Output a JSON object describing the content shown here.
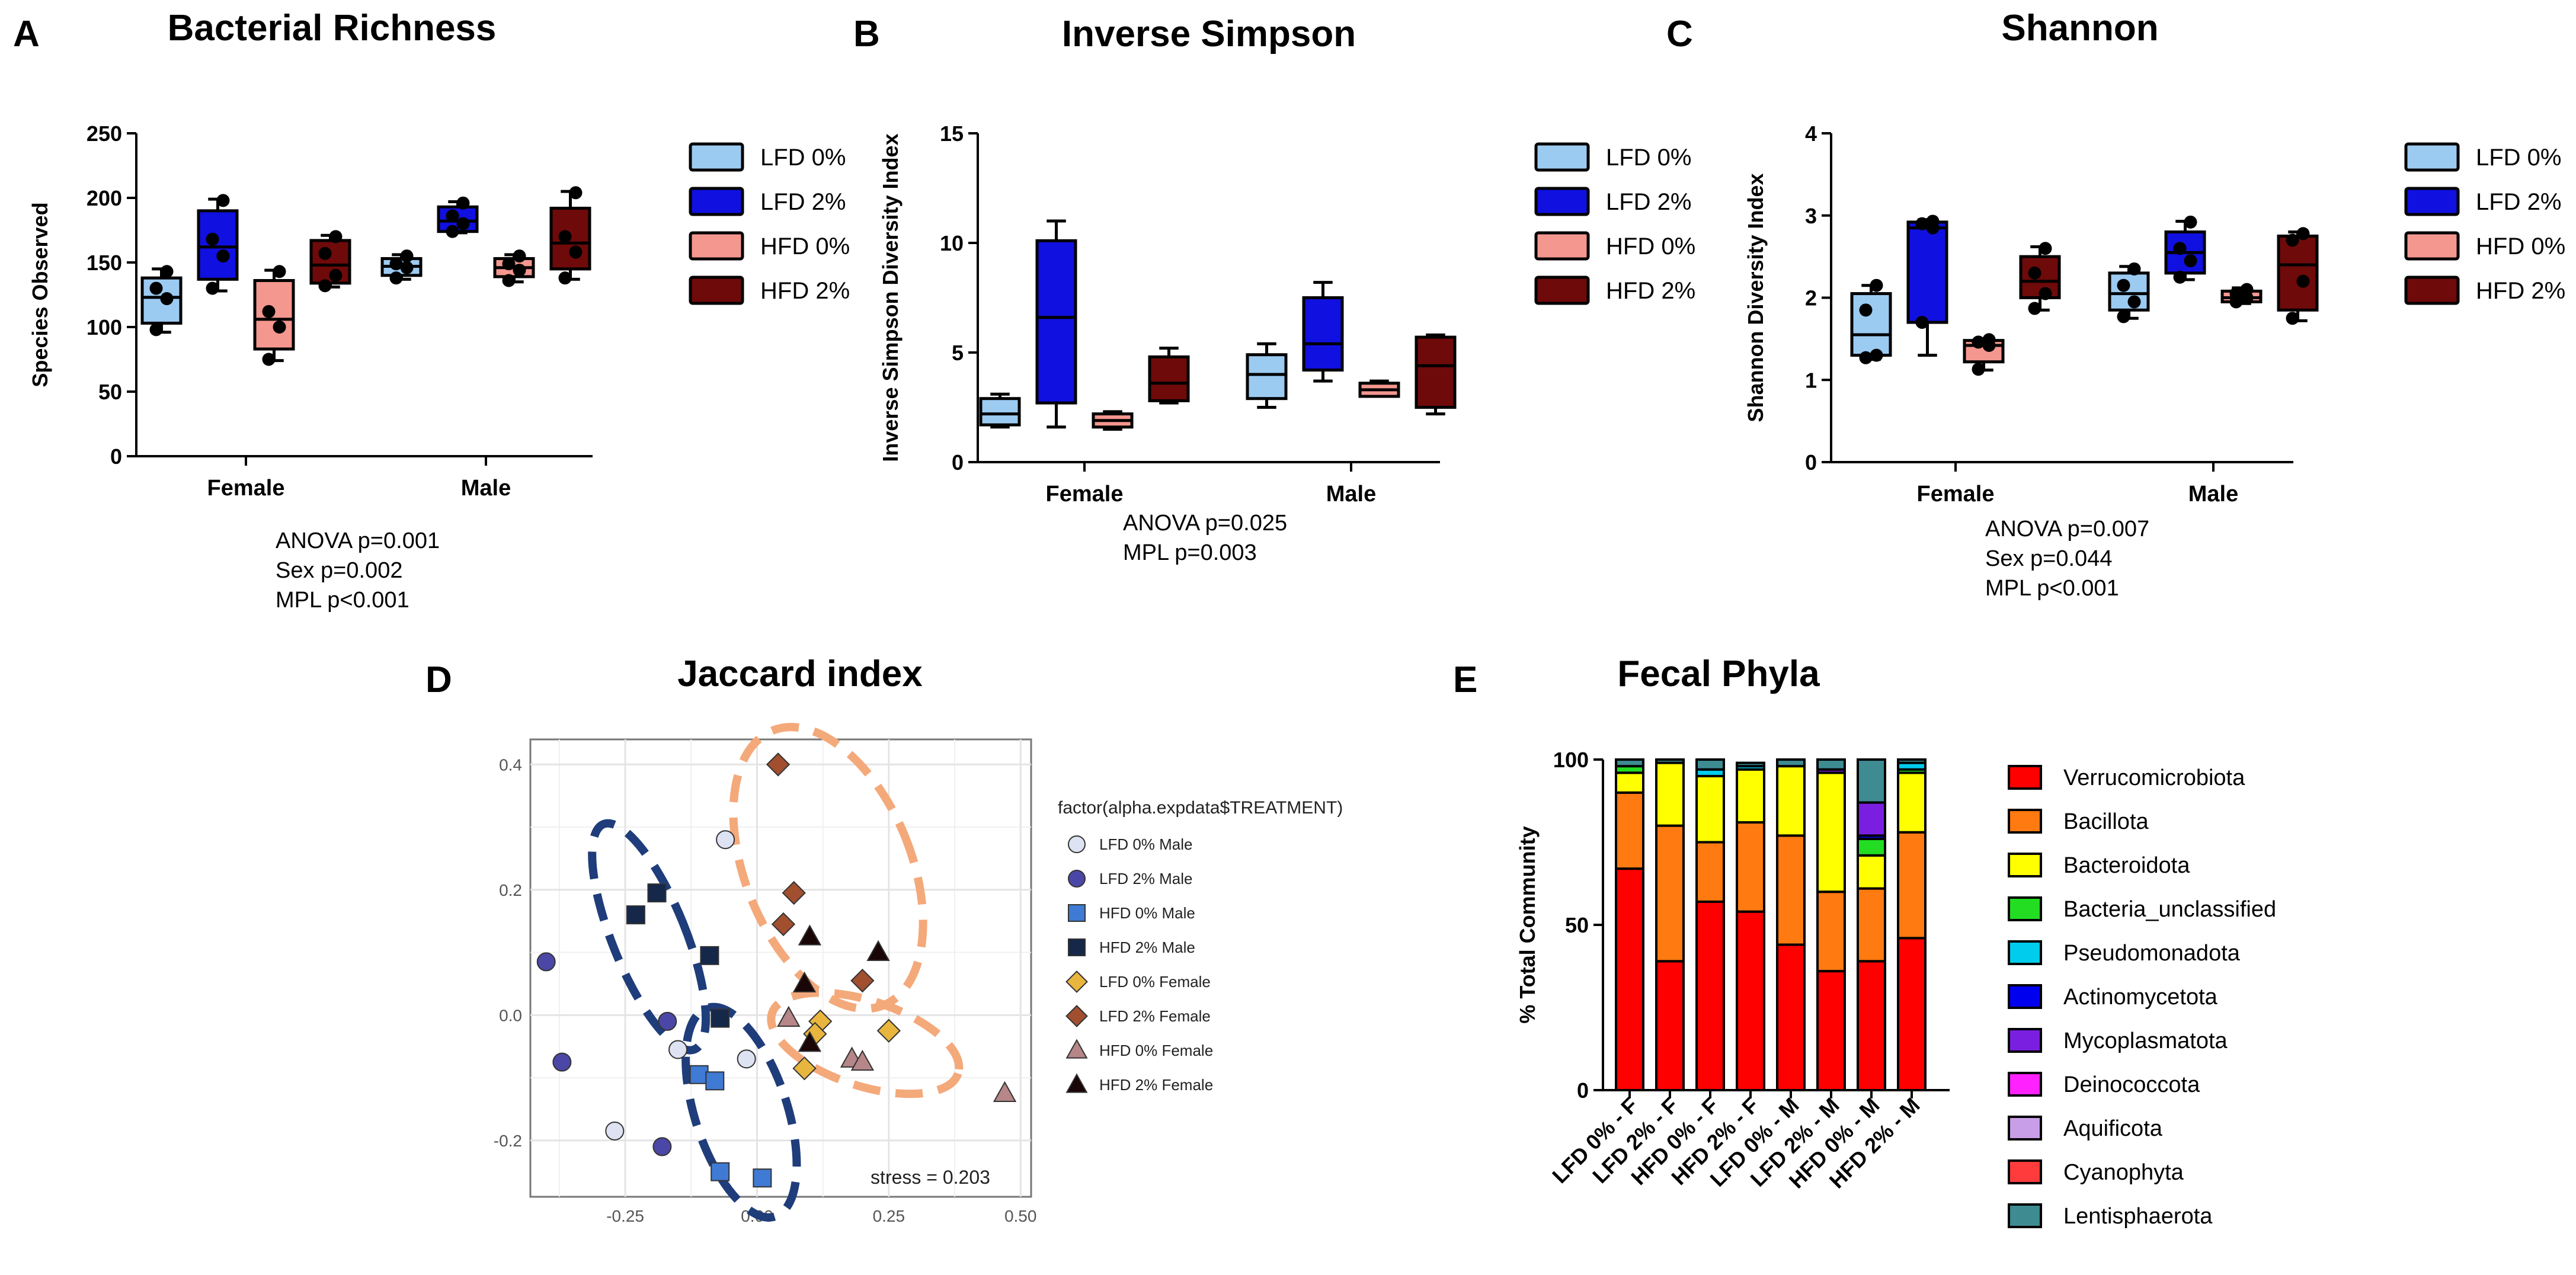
{
  "colors": {
    "lfd0": "#9ccbf2",
    "lfd2": "#1010e0",
    "hfd0": "#f4978f",
    "hfd2": "#6e0a0a",
    "nav": "#1f3d7a",
    "orange": "#f4a97a"
  },
  "panels": {
    "A": {
      "letter": "A",
      "title": "Bacterial Richness",
      "stats": [
        "ANOVA p=0.001",
        "Sex p=0.002",
        "MPL p<0.001"
      ]
    },
    "B": {
      "letter": "B",
      "title": "Inverse Simpson",
      "stats": [
        "ANOVA p=0.025",
        "MPL p=0.003"
      ]
    },
    "C": {
      "letter": "C",
      "title": "Shannon",
      "stats": [
        "ANOVA p=0.007",
        "Sex p=0.044",
        "MPL p<0.001"
      ]
    },
    "D": {
      "letter": "D",
      "title": "Jaccard index"
    },
    "E": {
      "letter": "E",
      "title": "Fecal Phyla"
    }
  },
  "chart_data": [
    {
      "id": "A",
      "type": "box",
      "title": "Bacterial Richness",
      "ylabel": "Species Observed",
      "ylim": [
        0,
        250
      ],
      "yticks": [
        0,
        50,
        100,
        150,
        200,
        250
      ],
      "categories": [
        "Female",
        "Male"
      ],
      "legend": [
        "LFD 0%",
        "LFD 2%",
        "HFD 0%",
        "HFD 2%"
      ],
      "boxes": [
        {
          "group": "Female",
          "series": "LFD 0%",
          "min": 96,
          "q1": 103,
          "median": 123,
          "q3": 138,
          "max": 145,
          "points": [
            98,
            122,
            130,
            143
          ]
        },
        {
          "group": "Female",
          "series": "LFD 2%",
          "min": 128,
          "q1": 137,
          "median": 162,
          "q3": 190,
          "max": 199,
          "points": [
            130,
            155,
            168,
            198
          ]
        },
        {
          "group": "Female",
          "series": "HFD 0%",
          "min": 74,
          "q1": 83,
          "median": 106,
          "q3": 136,
          "max": 144,
          "points": [
            75,
            100,
            112,
            143
          ]
        },
        {
          "group": "Female",
          "series": "HFD 2%",
          "min": 131,
          "q1": 134,
          "median": 148,
          "q3": 167,
          "max": 171,
          "points": [
            132,
            140,
            157,
            170
          ]
        },
        {
          "group": "Male",
          "series": "LFD 0%",
          "min": 137,
          "q1": 140,
          "median": 147,
          "q3": 153,
          "max": 156,
          "points": [
            138,
            146,
            149,
            155
          ]
        },
        {
          "group": "Male",
          "series": "LFD 2%",
          "min": 173,
          "q1": 174,
          "median": 182,
          "q3": 193,
          "max": 197,
          "points": [
            174,
            180,
            186,
            196
          ]
        },
        {
          "group": "Male",
          "series": "HFD 0%",
          "min": 135,
          "q1": 139,
          "median": 146,
          "q3": 153,
          "max": 156,
          "points": [
            136,
            144,
            149,
            155
          ]
        },
        {
          "group": "Male",
          "series": "HFD 2%",
          "min": 137,
          "q1": 145,
          "median": 165,
          "q3": 192,
          "max": 205,
          "points": [
            138,
            158,
            170,
            204
          ]
        }
      ]
    },
    {
      "id": "B",
      "type": "box",
      "title": "Inverse Simpson",
      "ylabel": "Inverse Simpson Diversity Index",
      "ylim": [
        0,
        15
      ],
      "yticks": [
        0,
        5,
        10,
        15
      ],
      "categories": [
        "Female",
        "Male"
      ],
      "legend": [
        "LFD 0%",
        "LFD 2%",
        "HFD 0%",
        "HFD 2%"
      ],
      "boxes": [
        {
          "group": "Female",
          "series": "LFD 0%",
          "min": 1.6,
          "q1": 1.7,
          "median": 2.2,
          "q3": 2.9,
          "max": 3.1,
          "points": []
        },
        {
          "group": "Female",
          "series": "LFD 2%",
          "min": 1.6,
          "q1": 2.7,
          "median": 6.6,
          "q3": 10.1,
          "max": 11.0,
          "points": []
        },
        {
          "group": "Female",
          "series": "HFD 0%",
          "min": 1.5,
          "q1": 1.6,
          "median": 1.9,
          "q3": 2.2,
          "max": 2.3,
          "points": []
        },
        {
          "group": "Female",
          "series": "HFD 2%",
          "min": 2.7,
          "q1": 2.8,
          "median": 3.6,
          "q3": 4.8,
          "max": 5.2,
          "points": []
        },
        {
          "group": "Male",
          "series": "LFD 0%",
          "min": 2.5,
          "q1": 2.9,
          "median": 4.0,
          "q3": 4.9,
          "max": 5.4,
          "points": []
        },
        {
          "group": "Male",
          "series": "LFD 2%",
          "min": 3.7,
          "q1": 4.2,
          "median": 5.4,
          "q3": 7.5,
          "max": 8.2,
          "points": []
        },
        {
          "group": "Male",
          "series": "HFD 0%",
          "min": 3.0,
          "q1": 3.0,
          "median": 3.3,
          "q3": 3.6,
          "max": 3.7,
          "points": []
        },
        {
          "group": "Male",
          "series": "HFD 2%",
          "min": 2.2,
          "q1": 2.5,
          "median": 4.4,
          "q3": 5.7,
          "max": 5.8,
          "points": []
        }
      ]
    },
    {
      "id": "C",
      "type": "box",
      "title": "Shannon",
      "ylabel": "Shannon Diversity Index",
      "ylim": [
        0,
        4
      ],
      "yticks": [
        0,
        1,
        2,
        3,
        4
      ],
      "categories": [
        "Female",
        "Male"
      ],
      "legend": [
        "LFD 0%",
        "LFD 2%",
        "HFD 0%",
        "HFD 2%"
      ],
      "boxes": [
        {
          "group": "Female",
          "series": "LFD 0%",
          "min": 1.25,
          "q1": 1.3,
          "median": 1.55,
          "q3": 2.05,
          "max": 2.15,
          "points": [
            1.27,
            1.3,
            1.85,
            2.15
          ]
        },
        {
          "group": "Female",
          "series": "LFD 2%",
          "min": 1.3,
          "q1": 1.7,
          "median": 2.85,
          "q3": 2.92,
          "max": 2.95,
          "points": [
            1.7,
            2.85,
            2.9,
            2.93
          ]
        },
        {
          "group": "Female",
          "series": "HFD 0%",
          "min": 1.12,
          "q1": 1.22,
          "median": 1.42,
          "q3": 1.48,
          "max": 1.5,
          "points": [
            1.13,
            1.42,
            1.46,
            1.49
          ]
        },
        {
          "group": "Female",
          "series": "HFD 2%",
          "min": 1.85,
          "q1": 2.0,
          "median": 2.2,
          "q3": 2.5,
          "max": 2.62,
          "points": [
            1.87,
            2.05,
            2.3,
            2.6
          ]
        },
        {
          "group": "Male",
          "series": "LFD 0%",
          "min": 1.75,
          "q1": 1.85,
          "median": 2.05,
          "q3": 2.3,
          "max": 2.38,
          "points": [
            1.77,
            1.95,
            2.15,
            2.35
          ]
        },
        {
          "group": "Male",
          "series": "LFD 2%",
          "min": 2.22,
          "q1": 2.3,
          "median": 2.55,
          "q3": 2.8,
          "max": 2.93,
          "points": [
            2.25,
            2.45,
            2.6,
            2.92
          ]
        },
        {
          "group": "Male",
          "series": "HFD 0%",
          "min": 1.93,
          "q1": 1.95,
          "median": 2.0,
          "q3": 2.08,
          "max": 2.12,
          "points": [
            1.95,
            2.0,
            2.05,
            2.1
          ]
        },
        {
          "group": "Male",
          "series": "HFD 2%",
          "min": 1.72,
          "q1": 1.85,
          "median": 2.4,
          "q3": 2.75,
          "max": 2.8,
          "points": [
            1.75,
            2.2,
            2.7,
            2.78
          ]
        }
      ]
    },
    {
      "id": "D",
      "type": "scatter",
      "title": "Jaccard index",
      "xlim": [
        -0.43,
        0.52
      ],
      "ylim": [
        -0.29,
        0.44
      ],
      "xticks": [
        "-0.25",
        "0.00",
        "0.25",
        "0.50"
      ],
      "yticks": [
        "0.4",
        "0.2",
        "0.0",
        "-0.2"
      ],
      "legend_title": "factor(alpha.expdata$TREATMENT)",
      "annotation": "stress =  0.203",
      "series": [
        {
          "name": "LFD 0% Male",
          "marker": "circle",
          "color": "#dde3f3",
          "points": [
            [
              -0.06,
              0.28
            ],
            [
              -0.15,
              -0.055
            ],
            [
              -0.27,
              -0.185
            ],
            [
              -0.02,
              -0.07
            ]
          ]
        },
        {
          "name": "LFD 2% Male",
          "marker": "circle",
          "color": "#4b47a6",
          "points": [
            [
              -0.4,
              0.085
            ],
            [
              -0.37,
              -0.075
            ],
            [
              -0.17,
              -0.01
            ],
            [
              -0.18,
              -0.21
            ]
          ]
        },
        {
          "name": "HFD 0% Male",
          "marker": "square",
          "color": "#3f7ad4",
          "points": [
            [
              -0.11,
              -0.095
            ],
            [
              -0.08,
              -0.105
            ],
            [
              -0.07,
              -0.25
            ],
            [
              0.01,
              -0.26
            ]
          ]
        },
        {
          "name": "HFD 2% Male",
          "marker": "square",
          "color": "#15284a",
          "points": [
            [
              -0.23,
              0.16
            ],
            [
              -0.19,
              0.195
            ],
            [
              -0.09,
              0.095
            ],
            [
              -0.07,
              -0.005
            ]
          ]
        },
        {
          "name": "LFD 0% Female",
          "marker": "diamond",
          "color": "#e8b63e",
          "points": [
            [
              0.12,
              -0.01
            ],
            [
              0.11,
              -0.03
            ],
            [
              0.25,
              -0.025
            ],
            [
              0.09,
              -0.085
            ]
          ]
        },
        {
          "name": "LFD 2% Female",
          "marker": "diamond",
          "color": "#a14f2f",
          "points": [
            [
              0.04,
              0.4
            ],
            [
              0.07,
              0.195
            ],
            [
              0.05,
              0.145
            ],
            [
              0.2,
              0.055
            ]
          ]
        },
        {
          "name": "HFD 0% Female",
          "marker": "triangle",
          "color": "#b68688",
          "points": [
            [
              0.06,
              -0.005
            ],
            [
              0.18,
              -0.07
            ],
            [
              0.2,
              -0.075
            ],
            [
              0.47,
              -0.125
            ]
          ]
        },
        {
          "name": "HFD 2% Female",
          "marker": "triangle",
          "color": "#1a0606",
          "points": [
            [
              0.1,
              0.125
            ],
            [
              0.09,
              0.05
            ],
            [
              0.23,
              0.1
            ],
            [
              0.1,
              -0.045
            ]
          ]
        }
      ]
    },
    {
      "id": "E",
      "type": "stacked_bar",
      "title": "Fecal Phyla",
      "ylabel": "% Total Community",
      "ylim": [
        0,
        100
      ],
      "yticks": [
        0,
        50,
        100
      ],
      "categories": [
        "LFD 0% - F",
        "LFD 2% - F",
        "HFD 0% - F",
        "HFD 2% - F",
        "LFD 0% - M",
        "LFD 2% - M",
        "HFD 0% - M",
        "HFD 2% - M"
      ],
      "series": [
        {
          "name": "Verrucomicrobiota",
          "color": "#ff0000",
          "values": [
            67,
            39,
            57,
            54,
            44,
            36,
            39,
            46
          ]
        },
        {
          "name": "Bacillota",
          "color": "#ff7a10",
          "values": [
            23,
            41,
            18,
            27,
            33,
            24,
            22,
            32
          ]
        },
        {
          "name": "Bacteroidota",
          "color": "#ffff00",
          "values": [
            6,
            19,
            20,
            16,
            21,
            36,
            10,
            18
          ]
        },
        {
          "name": "Bacteria_unclassified",
          "color": "#22dd22",
          "values": [
            2,
            0,
            0,
            0,
            0,
            0,
            5,
            1
          ]
        },
        {
          "name": "Pseudomonadota",
          "color": "#00ccee",
          "values": [
            0,
            0,
            2,
            1,
            0,
            0,
            0,
            2
          ]
        },
        {
          "name": "Actinomycetota",
          "color": "#0000ee",
          "values": [
            0,
            0,
            0,
            0,
            0,
            0,
            1,
            0
          ]
        },
        {
          "name": "Mycoplasmatota",
          "color": "#7a1fe0",
          "values": [
            0,
            0,
            0,
            0,
            0,
            1,
            10,
            0
          ]
        },
        {
          "name": "Deinococcota",
          "color": "#ff22ff",
          "values": [
            0,
            0,
            0,
            0,
            0,
            0,
            0,
            0
          ]
        },
        {
          "name": "Aquificota",
          "color": "#c89ee8",
          "values": [
            0,
            0,
            0,
            0,
            0,
            0,
            0,
            0
          ]
        },
        {
          "name": "Cyanophyta",
          "color": "#ff3b3b",
          "values": [
            0,
            0,
            0,
            0,
            0,
            0,
            0,
            0
          ]
        },
        {
          "name": "Lentisphaerota",
          "color": "#3e8b92",
          "values": [
            2,
            1,
            3,
            1,
            2,
            3,
            13,
            1
          ]
        }
      ]
    }
  ]
}
